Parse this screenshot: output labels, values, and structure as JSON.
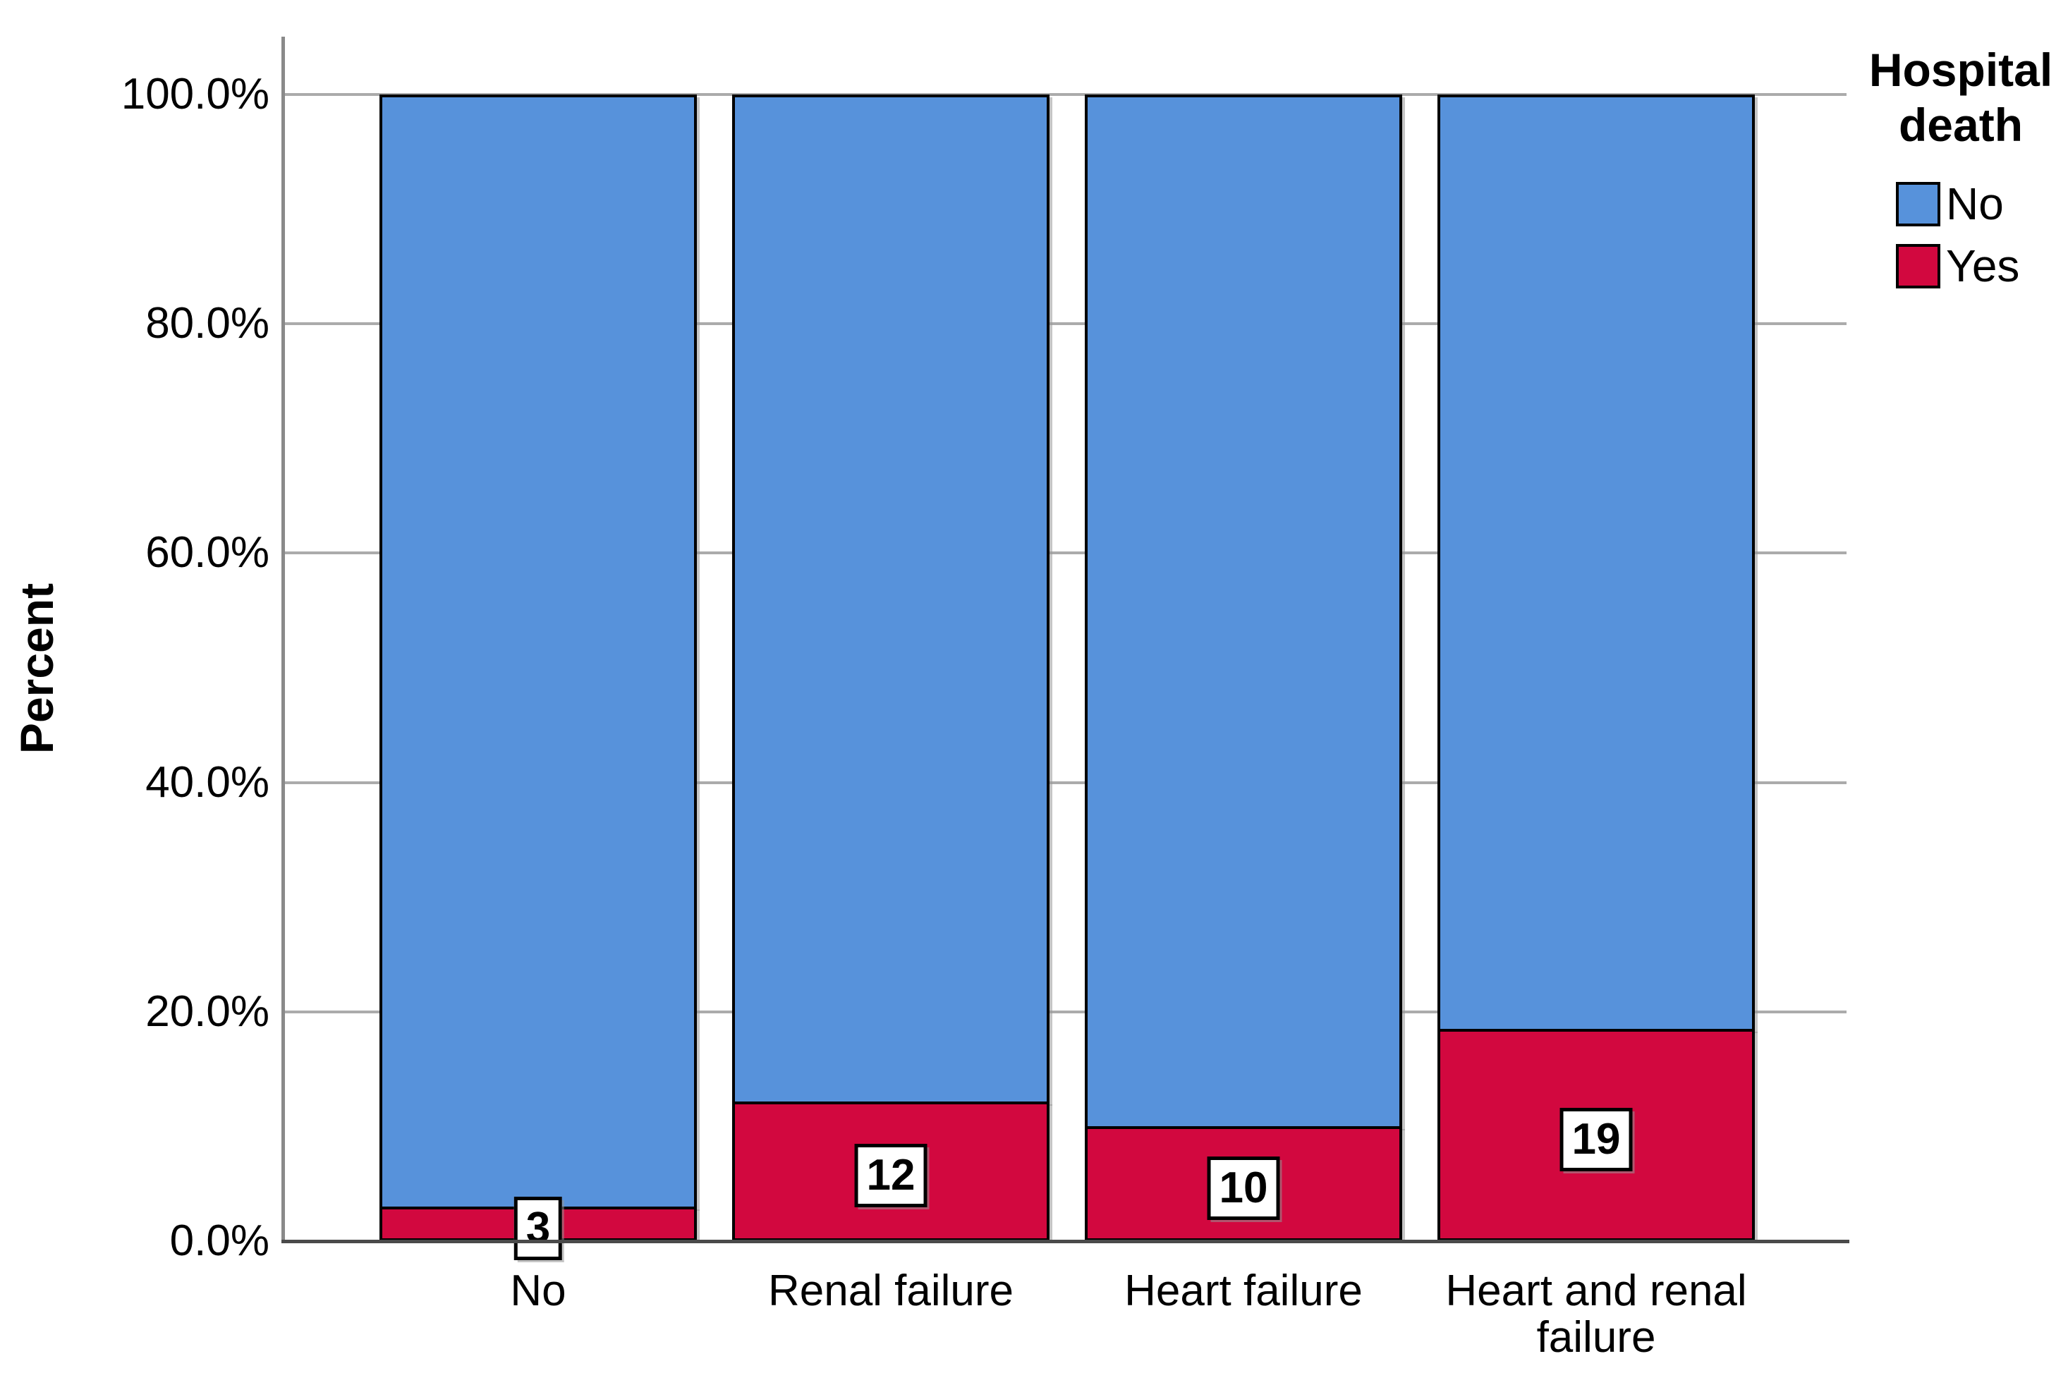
{
  "figure": {
    "type_note": "SPSS-style 100% stacked bar chart",
    "colors": {
      "no_fill": "#5792DB",
      "yes_fill": "#D2083F",
      "bar_border": "#000000",
      "gridline": "#ababab",
      "y_axis_line": "#8a8a8a",
      "x_axis_line": "#4a4a4a",
      "label_box_bg": "#ffffff",
      "label_box_border": "#000000"
    }
  },
  "y_axis": {
    "label": "Percent",
    "ticks": [
      {
        "label": "0.0%",
        "value": 0
      },
      {
        "label": "20.0%",
        "value": 20
      },
      {
        "label": "40.0%",
        "value": 40
      },
      {
        "label": "60.0%",
        "value": 60
      },
      {
        "label": "80.0%",
        "value": 80
      },
      {
        "label": "100.0%",
        "value": 100
      }
    ]
  },
  "legend": {
    "title": "Hospital death",
    "items": [
      {
        "label": "No",
        "color": "#5792DB"
      },
      {
        "label": "Yes",
        "color": "#D2083F"
      }
    ]
  },
  "chart_data": {
    "type": "bar",
    "subtype": "stacked-percent",
    "title": "",
    "xlabel": "",
    "ylabel": "Percent",
    "ylim": [
      0,
      100
    ],
    "grid": "horizontal gridlines every 20%, drawn behind bars",
    "legend_position": "top-right",
    "legend_title": "Hospital death",
    "categories": [
      "No",
      "Renal failure",
      "Heart failure",
      "Heart and renal failure"
    ],
    "series": [
      {
        "name": "Yes",
        "color": "#D2083F",
        "percent": [
          3.0,
          12.2,
          10.0,
          18.5
        ],
        "count_labels": [
          "3",
          "12",
          "10",
          "19"
        ]
      },
      {
        "name": "No",
        "color": "#5792DB",
        "percent": [
          97.0,
          87.8,
          90.0,
          81.5
        ]
      }
    ]
  }
}
